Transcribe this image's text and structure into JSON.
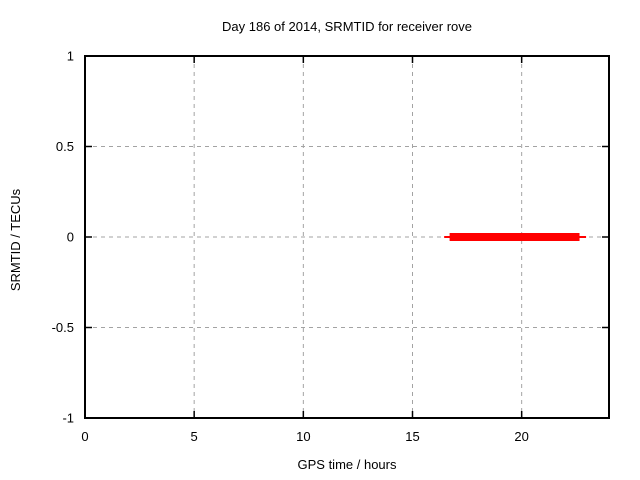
{
  "chart_data": {
    "type": "line",
    "title": "Day 186 of 2014, SRMTID for receiver rove",
    "xlabel": "GPS time / hours",
    "ylabel": "SRMTID / TECUs",
    "xlim": [
      0,
      24
    ],
    "ylim": [
      -1,
      1
    ],
    "xticks": [
      0,
      5,
      10,
      15,
      20
    ],
    "yticks": [
      -1,
      -0.5,
      0,
      0.5,
      1
    ],
    "grid": true,
    "legend": false,
    "colors": {
      "series": "#ff0000",
      "grid": "#a3a3a3",
      "axis": "#000000",
      "background": "#ffffff"
    },
    "series": [
      {
        "name": "SRMTID",
        "color": "#ff0000",
        "segments": [
          {
            "y": 0,
            "x_start": 16.45,
            "x_end": 22.95,
            "thickness_px": 2
          },
          {
            "y": 0,
            "x_start": 16.7,
            "x_end": 22.65,
            "thickness_px": 8
          }
        ]
      }
    ]
  }
}
